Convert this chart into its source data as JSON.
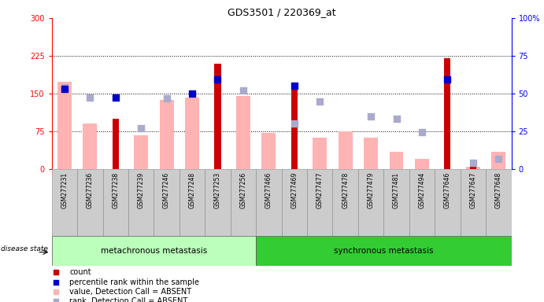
{
  "title": "GDS3501 / 220369_at",
  "samples": [
    "GSM277231",
    "GSM277236",
    "GSM277238",
    "GSM277239",
    "GSM277246",
    "GSM277248",
    "GSM277253",
    "GSM277256",
    "GSM277466",
    "GSM277469",
    "GSM277477",
    "GSM277478",
    "GSM277479",
    "GSM277481",
    "GSM277494",
    "GSM277646",
    "GSM277647",
    "GSM277648"
  ],
  "group1_label": "metachronous metastasis",
  "group2_label": "synchronous metastasis",
  "group1_count": 8,
  "group2_count": 10,
  "red_bars": [
    0,
    0,
    100,
    0,
    0,
    0,
    210,
    0,
    0,
    168,
    0,
    0,
    0,
    0,
    0,
    220,
    5,
    0
  ],
  "pink_bars": [
    173,
    90,
    0,
    68,
    138,
    143,
    0,
    145,
    72,
    0,
    62,
    75,
    63,
    35,
    20,
    0,
    5,
    35
  ],
  "blue_squares": [
    160,
    0,
    143,
    0,
    0,
    150,
    178,
    0,
    0,
    165,
    0,
    0,
    0,
    0,
    0,
    178,
    0,
    0
  ],
  "lightblue_squares": [
    163,
    143,
    0,
    82,
    140,
    0,
    0,
    157,
    0,
    90,
    135,
    0,
    105,
    100,
    73,
    0,
    12,
    20
  ],
  "ylim_left": [
    0,
    300
  ],
  "ylim_right": [
    0,
    100
  ],
  "yticks_left": [
    0,
    75,
    150,
    225,
    300
  ],
  "yticks_right": [
    0,
    25,
    50,
    75,
    100
  ],
  "ytick_labels_left": [
    "0",
    "75",
    "150",
    "225",
    "300"
  ],
  "ytick_labels_right": [
    "0",
    "25",
    "50",
    "75",
    "100%"
  ],
  "hlines": [
    75,
    150,
    225
  ],
  "red_color": "#cc0000",
  "pink_color": "#ffb3b3",
  "blue_color": "#0000cc",
  "lightblue_color": "#aaaacc",
  "group1_bg": "#bbffbb",
  "group2_bg": "#33cc33",
  "tick_area_bg": "#cccccc",
  "square_size": 30,
  "pink_bar_width": 0.55,
  "red_bar_width": 0.25
}
